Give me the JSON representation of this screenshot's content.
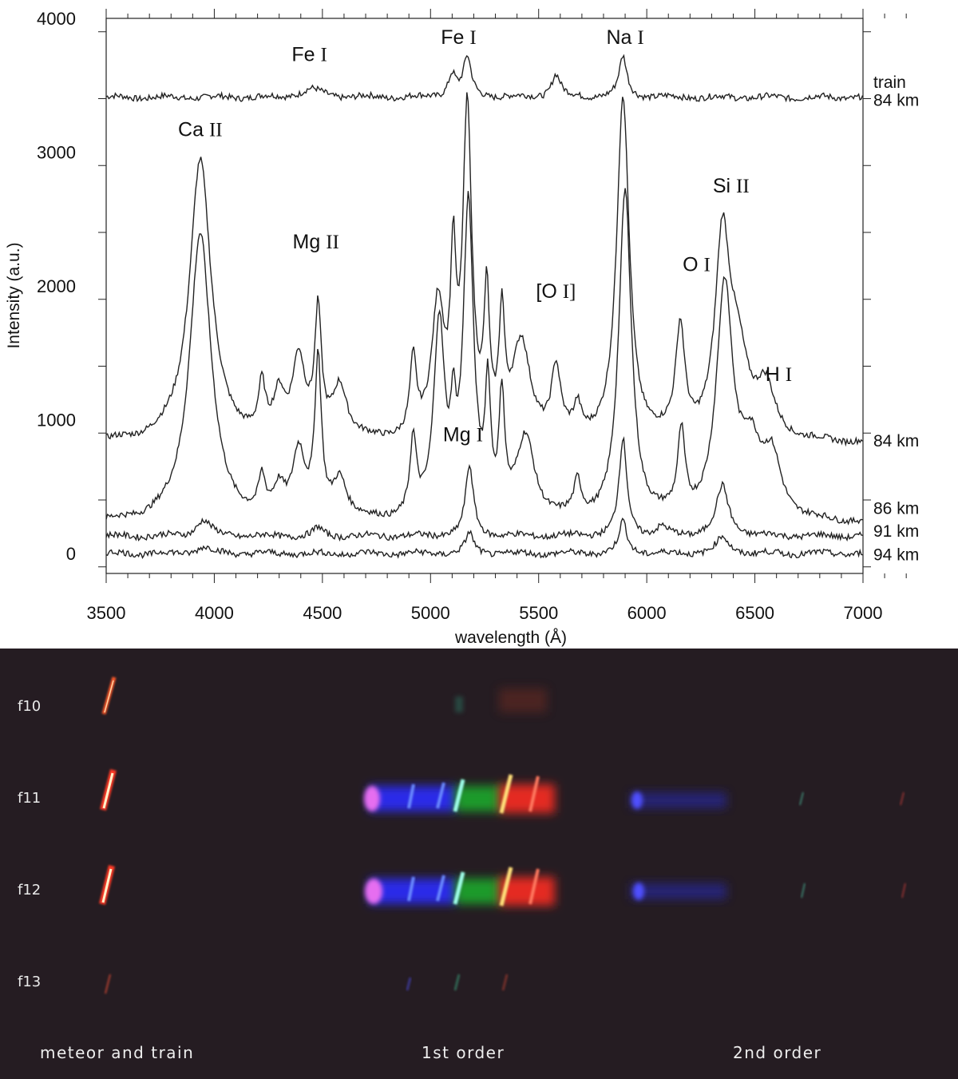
{
  "chart_data": {
    "type": "line",
    "xlabel": "wavelength (Å)",
    "ylabel": "Intensity (a.u.)",
    "xlim": [
      3500,
      7200
    ],
    "ylim": [
      -150,
      4000
    ],
    "xticks": [
      3500,
      4000,
      4500,
      5000,
      5500,
      6000,
      6500,
      7000
    ],
    "yticks": [
      0,
      1000,
      2000,
      3000,
      4000
    ],
    "grid": false,
    "series": [
      {
        "name": "train 84 km",
        "baseline": 3410,
        "peaks": [
          [
            4450,
            60,
            60
          ],
          [
            5100,
            170,
            22
          ],
          [
            5170,
            290,
            22
          ],
          [
            5580,
            170,
            25
          ],
          [
            5890,
            300,
            22
          ]
        ]
      },
      {
        "name": "84 km",
        "baseline": 820,
        "peaks": [
          [
            3935,
            2120,
            60
          ],
          [
            4220,
            350,
            18
          ],
          [
            4300,
            300,
            30
          ],
          [
            4390,
            600,
            35
          ],
          [
            4480,
            900,
            18
          ],
          [
            4580,
            400,
            40
          ],
          [
            4920,
            550,
            18
          ],
          [
            5035,
            1000,
            35
          ],
          [
            5105,
            1150,
            15
          ],
          [
            5170,
            2400,
            25
          ],
          [
            5260,
            1000,
            15
          ],
          [
            5330,
            850,
            15
          ],
          [
            5420,
            700,
            50
          ],
          [
            5580,
            500,
            25
          ],
          [
            5680,
            200,
            20
          ],
          [
            5890,
            2550,
            35
          ],
          [
            6155,
            800,
            25
          ],
          [
            6350,
            1400,
            40
          ],
          [
            6420,
            600,
            60
          ],
          [
            6550,
            350,
            50
          ]
        ]
      },
      {
        "name": "86 km",
        "baseline": 220,
        "peaks": [
          [
            3935,
            2170,
            60
          ],
          [
            4220,
            250,
            18
          ],
          [
            4300,
            200,
            30
          ],
          [
            4390,
            500,
            35
          ],
          [
            4480,
            1150,
            18
          ],
          [
            4580,
            300,
            40
          ],
          [
            4920,
            550,
            18
          ],
          [
            5040,
            1450,
            30
          ],
          [
            5105,
            550,
            15
          ],
          [
            5175,
            2300,
            28
          ],
          [
            5265,
            900,
            15
          ],
          [
            5330,
            850,
            15
          ],
          [
            5440,
            600,
            50
          ],
          [
            5680,
            250,
            20
          ],
          [
            5900,
            2450,
            35
          ],
          [
            6160,
            600,
            20
          ],
          [
            6360,
            1700,
            45
          ],
          [
            6480,
            500,
            60
          ],
          [
            6580,
            400,
            50
          ]
        ]
      },
      {
        "name": "91 km",
        "baseline": 130,
        "peaks": [
          [
            3950,
            120,
            40
          ],
          [
            4480,
            60,
            25
          ],
          [
            5180,
            520,
            22
          ],
          [
            5890,
            720,
            22
          ],
          [
            6070,
            60,
            30
          ],
          [
            6350,
            370,
            35
          ]
        ]
      },
      {
        "name": "94 km",
        "baseline": 0,
        "peaks": [
          [
            3950,
            50,
            40
          ],
          [
            5180,
            150,
            22
          ],
          [
            5890,
            240,
            22
          ],
          [
            6350,
            120,
            35
          ]
        ]
      }
    ],
    "series_labels": [
      "train",
      "84 km",
      "84 km",
      "86 km",
      "91 km",
      "94 km"
    ],
    "annotations": [
      {
        "prefix": "Ca ",
        "ion": "II",
        "x": 3935,
        "y": 3120
      },
      {
        "prefix": "Fe ",
        "ion": "I",
        "x": 4440,
        "y": 3680
      },
      {
        "prefix": "Mg ",
        "ion": "II",
        "x": 4470,
        "y": 2280
      },
      {
        "prefix": "Fe ",
        "ion": "I",
        "x": 5130,
        "y": 3810
      },
      {
        "prefix": "Na ",
        "ion": "I",
        "x": 5900,
        "y": 3810
      },
      {
        "prefix": "[O ",
        "ion": "I]",
        "x": 5580,
        "y": 1910
      },
      {
        "prefix": "O ",
        "ion": "I",
        "x": 6230,
        "y": 2110
      },
      {
        "prefix": "Si ",
        "ion": "II",
        "x": 6390,
        "y": 2700
      },
      {
        "prefix": "H ",
        "ion": "I",
        "x": 6610,
        "y": 1290
      },
      {
        "prefix": "Mg ",
        "ion": "I",
        "x": 5150,
        "y": 840
      }
    ]
  },
  "photo": {
    "frames": [
      "f10",
      "f11",
      "f12",
      "f13"
    ],
    "captions": [
      "meteor and train",
      "1st order",
      "2nd order"
    ]
  }
}
